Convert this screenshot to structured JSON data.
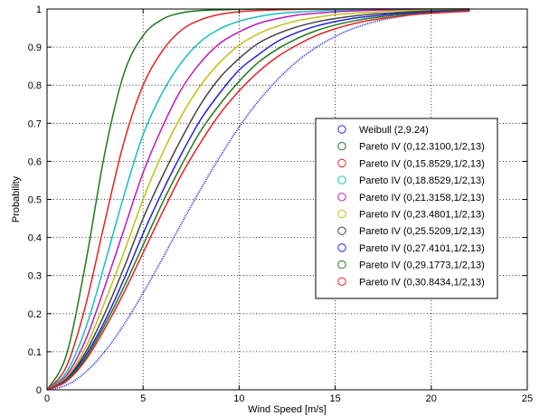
{
  "chart_data": {
    "type": "line",
    "title": "",
    "xlabel": "Wind Speed [m/s]",
    "ylabel": "Probability",
    "xlim": [
      0,
      25
    ],
    "ylim": [
      0,
      1
    ],
    "xticks": [
      0,
      5,
      10,
      15,
      20,
      25
    ],
    "yticks": [
      0,
      0.1,
      0.2,
      0.3,
      0.4,
      0.5,
      0.6,
      0.7,
      0.8,
      0.9,
      1
    ],
    "xtick_labels": [
      "0",
      "5",
      "10",
      "15",
      "20",
      "25"
    ],
    "ytick_labels": [
      "0",
      "0.1",
      "0.2",
      "0.3",
      "0.4",
      "0.5",
      "0.6",
      "0.7",
      "0.8",
      "0.9",
      "1"
    ],
    "grid": true,
    "legend_position": "center-right",
    "x": [
      0,
      1,
      2,
      3,
      4,
      5,
      6,
      7,
      8,
      9,
      10,
      11,
      12,
      13,
      14,
      15,
      16,
      17,
      18,
      19,
      20,
      21,
      22
    ],
    "series": [
      {
        "name": "Weibull (2,9.24)",
        "color": "#2b2bd4",
        "style": "dotted",
        "values": [
          0,
          0.012,
          0.046,
          0.1,
          0.171,
          0.254,
          0.344,
          0.437,
          0.527,
          0.612,
          0.69,
          0.758,
          0.815,
          0.862,
          0.899,
          0.928,
          0.95,
          0.966,
          0.977,
          0.985,
          0.991,
          0.994,
          0.996
        ]
      },
      {
        "name": "Pareto IV (0,12.3100,1/2,13)",
        "color": "#1d7a1d",
        "style": "solid",
        "values": [
          0,
          0.09,
          0.33,
          0.62,
          0.83,
          0.93,
          0.973,
          0.99,
          0.996,
          0.998,
          0.999,
          1,
          1,
          1,
          1,
          1,
          1,
          1,
          1,
          1,
          1,
          1,
          1
        ]
      },
      {
        "name": "Pareto IV (0,15.8529,1/2,13)",
        "color": "#e32222",
        "style": "solid",
        "values": [
          0,
          0.06,
          0.22,
          0.44,
          0.65,
          0.8,
          0.89,
          0.945,
          0.972,
          0.986,
          0.993,
          0.996,
          0.998,
          0.999,
          1,
          1,
          1,
          1,
          1,
          1,
          1,
          1,
          1
        ]
      },
      {
        "name": "Pareto IV (0,18.8529,1/2,13)",
        "color": "#17bfbf",
        "style": "solid",
        "values": [
          0,
          0.045,
          0.16,
          0.33,
          0.51,
          0.67,
          0.78,
          0.86,
          0.915,
          0.948,
          0.968,
          0.98,
          0.988,
          0.992,
          0.995,
          0.997,
          0.998,
          0.999,
          1,
          1,
          1,
          1,
          1
        ]
      },
      {
        "name": "Pareto IV (0,21.3158,1/2,13)",
        "color": "#bf17bf",
        "style": "solid",
        "values": [
          0,
          0.037,
          0.13,
          0.27,
          0.42,
          0.57,
          0.69,
          0.79,
          0.86,
          0.91,
          0.94,
          0.962,
          0.975,
          0.984,
          0.989,
          0.993,
          0.995,
          0.997,
          0.998,
          0.998,
          0.999,
          0.999,
          1
        ]
      },
      {
        "name": "Pareto IV (0,23.4801,1/2,13)",
        "color": "#bfbf17",
        "style": "solid",
        "values": [
          0,
          0.032,
          0.11,
          0.23,
          0.36,
          0.5,
          0.62,
          0.72,
          0.8,
          0.86,
          0.905,
          0.935,
          0.955,
          0.969,
          0.978,
          0.985,
          0.989,
          0.992,
          0.995,
          0.996,
          0.997,
          0.998,
          0.999
        ]
      },
      {
        "name": "Pareto IV (0,25.5209,1/2,13)",
        "color": "#444444",
        "style": "solid",
        "values": [
          0,
          0.028,
          0.098,
          0.2,
          0.32,
          0.45,
          0.56,
          0.66,
          0.75,
          0.82,
          0.87,
          0.91,
          0.935,
          0.953,
          0.966,
          0.975,
          0.982,
          0.987,
          0.99,
          0.993,
          0.995,
          0.996,
          0.997
        ]
      },
      {
        "name": "Pareto IV (0,27.4101,1/2,13)",
        "color": "#2222dd",
        "style": "solid",
        "values": [
          0,
          0.026,
          0.09,
          0.18,
          0.29,
          0.41,
          0.52,
          0.62,
          0.71,
          0.78,
          0.84,
          0.88,
          0.915,
          0.938,
          0.955,
          0.967,
          0.976,
          0.982,
          0.987,
          0.99,
          0.993,
          0.995,
          0.996
        ]
      },
      {
        "name": "Pareto IV (0,29.1773,1/2,13)",
        "color": "#1d7a1d",
        "style": "solid",
        "values": [
          0,
          0.024,
          0.083,
          0.17,
          0.27,
          0.38,
          0.49,
          0.59,
          0.68,
          0.75,
          0.81,
          0.86,
          0.895,
          0.922,
          0.943,
          0.958,
          0.969,
          0.977,
          0.983,
          0.987,
          0.99,
          0.993,
          0.995
        ]
      },
      {
        "name": "Pareto IV (0,30.8434,1/2,13)",
        "color": "#e32222",
        "style": "solid",
        "values": [
          0,
          0.022,
          0.077,
          0.16,
          0.255,
          0.36,
          0.465,
          0.565,
          0.65,
          0.725,
          0.785,
          0.835,
          0.875,
          0.905,
          0.93,
          0.948,
          0.962,
          0.972,
          0.979,
          0.985,
          0.989,
          0.992,
          0.994
        ]
      }
    ]
  }
}
